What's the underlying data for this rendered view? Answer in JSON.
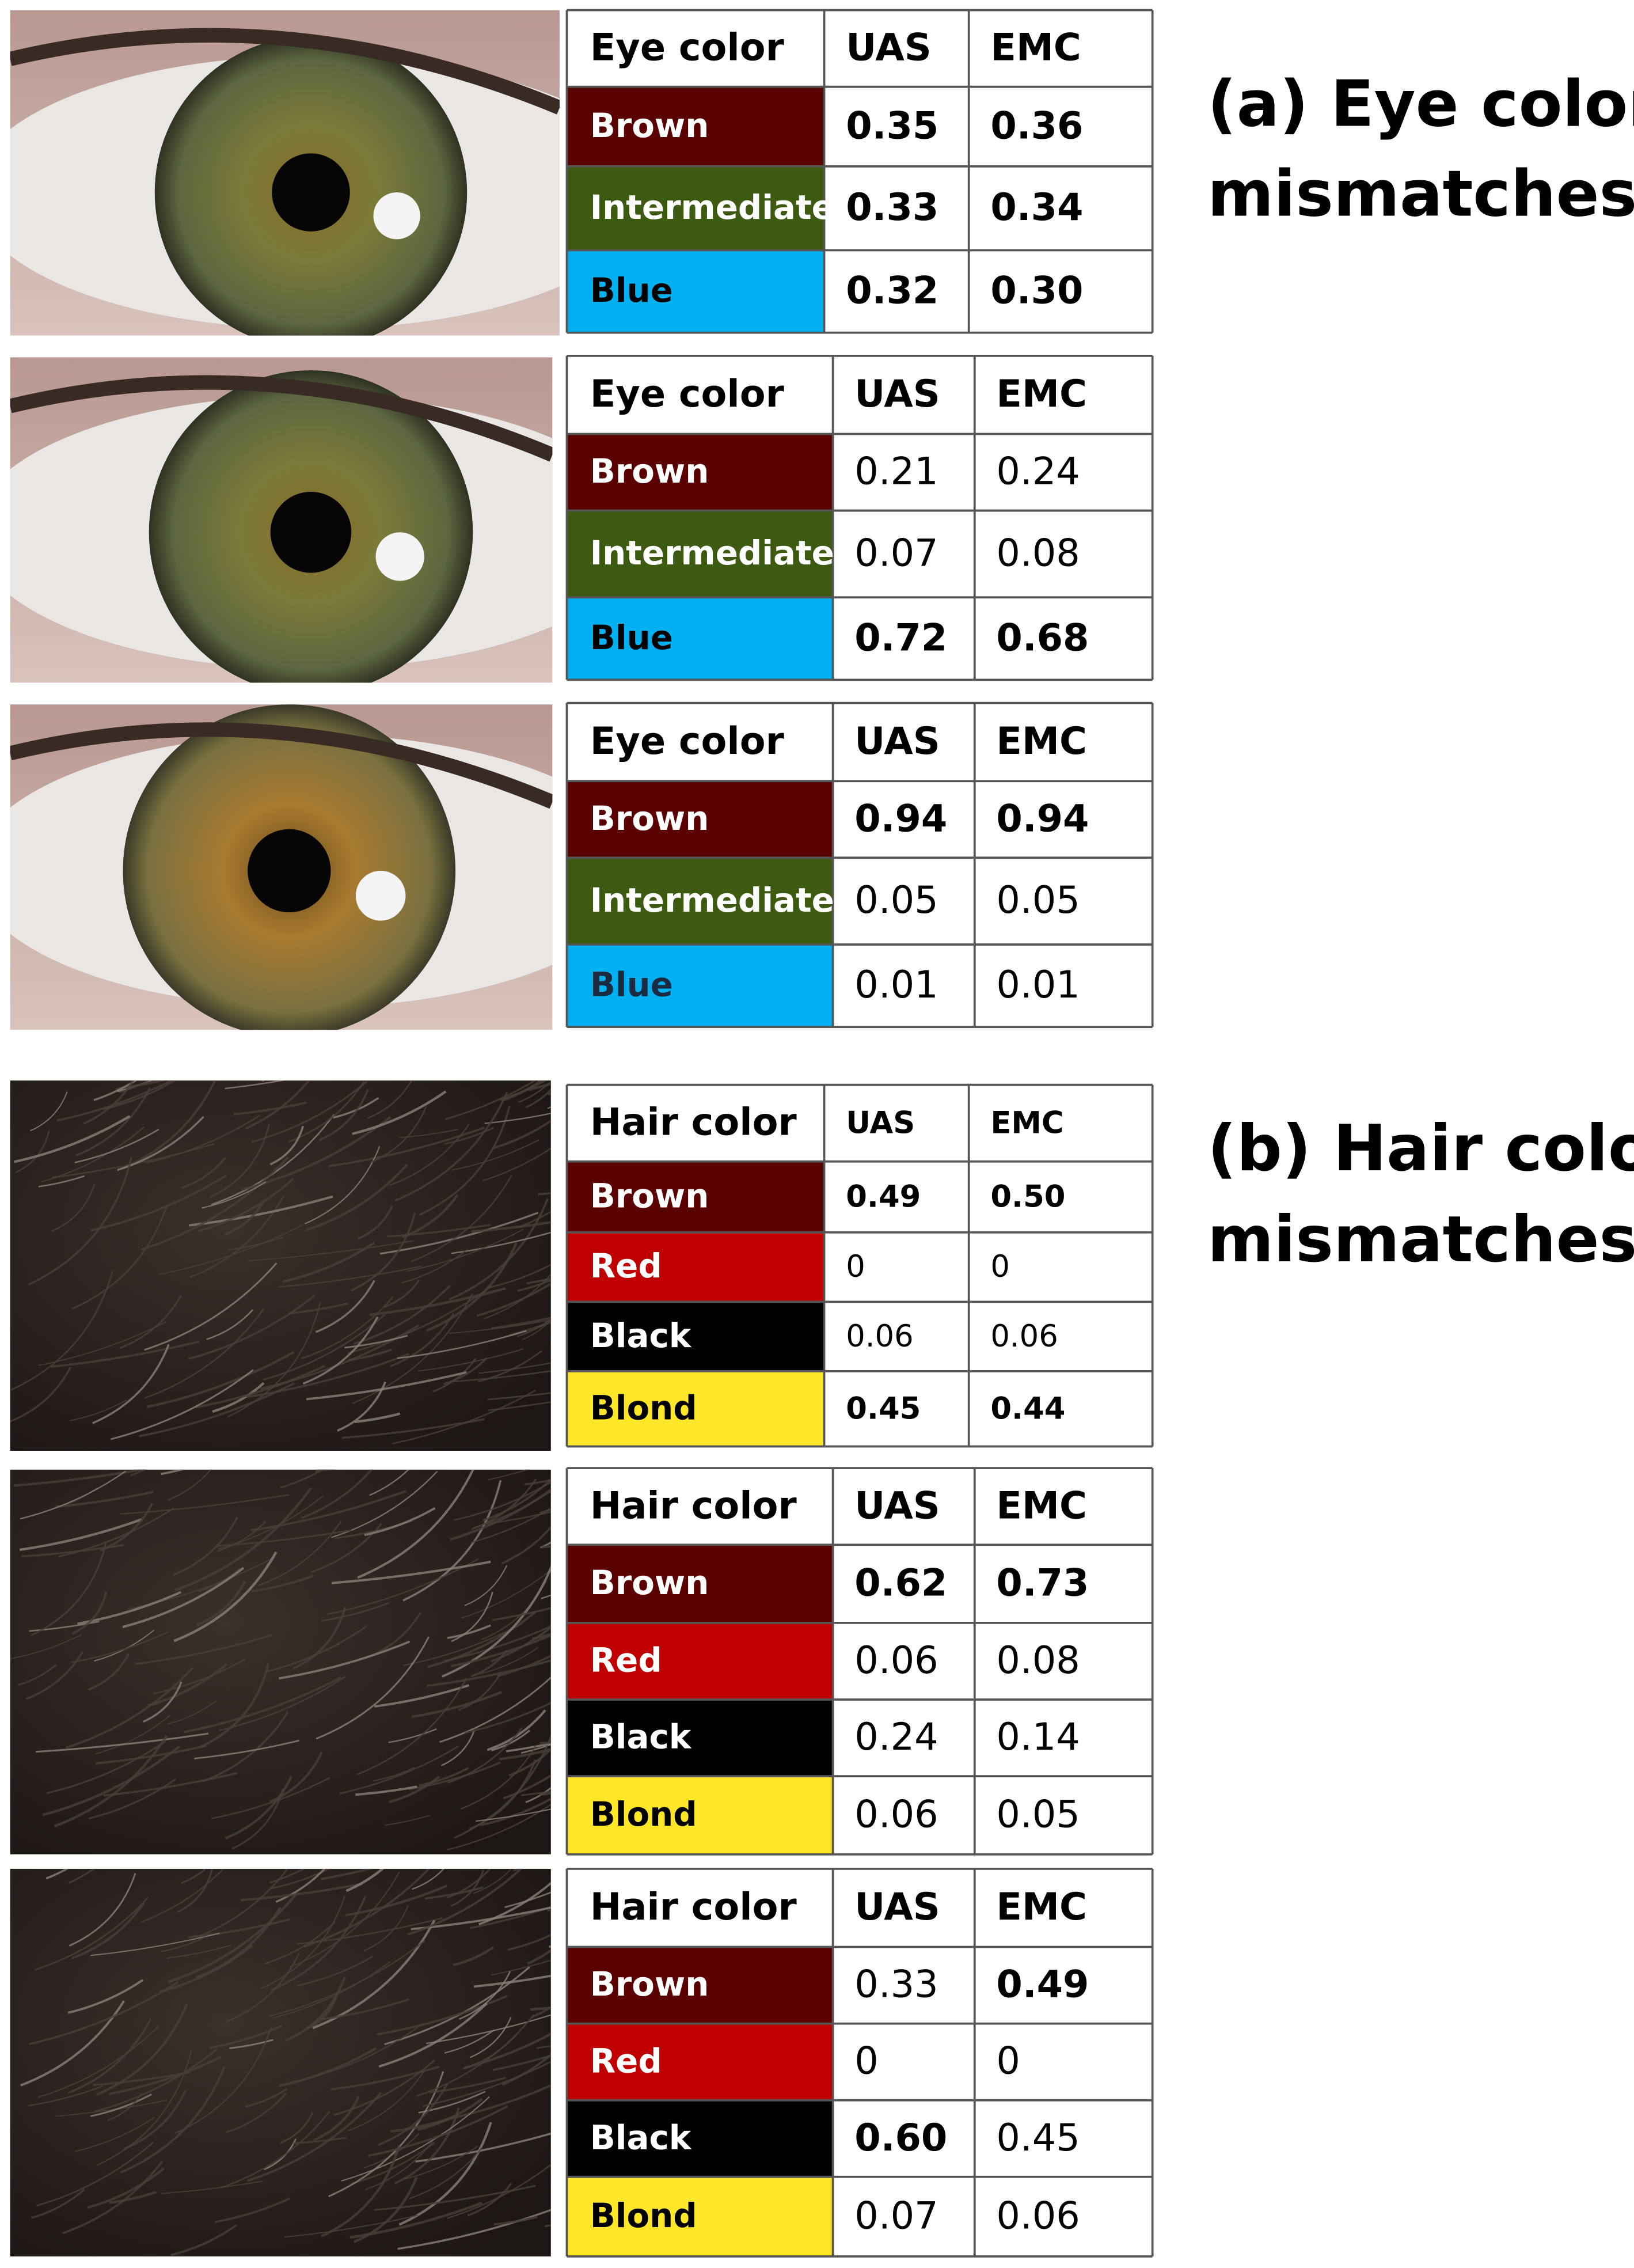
{
  "sections": [
    {
      "title_lines": [
        "(a)  Eye color",
        "mismatches"
      ],
      "tables": [
        {
          "header": [
            "Eye color",
            "UAS",
            "EMC"
          ],
          "rows": [
            {
              "label": "Brown",
              "color": "#5a0000",
              "text_color": "#ffffff",
              "values": [
                "0.35",
                "0.36"
              ],
              "bold": [
                true,
                true
              ]
            },
            {
              "label": "Intermediate",
              "color": "#3c5a10",
              "text_color": "#ffffff",
              "values": [
                "0.33",
                "0.34"
              ],
              "bold": [
                true,
                true
              ]
            },
            {
              "label": "Blue",
              "color": "#00b0f0",
              "text_color": "#000000",
              "values": [
                "0.32",
                "0.30"
              ],
              "bold": [
                true,
                true
              ]
            }
          ]
        },
        {
          "header": [
            "Eye color",
            "UAS",
            "EMC"
          ],
          "rows": [
            {
              "label": "Brown",
              "color": "#5a0000",
              "text_color": "#ffffff",
              "values": [
                "0.21",
                "0.24"
              ],
              "bold": [
                false,
                false
              ]
            },
            {
              "label": "Intermediate",
              "color": "#3c5a10",
              "text_color": "#ffffff",
              "values": [
                "0.07",
                "0.08"
              ],
              "bold": [
                false,
                false
              ]
            },
            {
              "label": "Blue",
              "color": "#00b0f0",
              "text_color": "#000000",
              "values": [
                "0.72",
                "0.68"
              ],
              "bold": [
                true,
                true
              ]
            }
          ]
        },
        {
          "header": [
            "Eye color",
            "UAS",
            "EMC"
          ],
          "rows": [
            {
              "label": "Brown",
              "color": "#5a0000",
              "text_color": "#ffffff",
              "values": [
                "0.94",
                "0.94"
              ],
              "bold": [
                true,
                true
              ]
            },
            {
              "label": "Intermediate",
              "color": "#3c5a10",
              "text_color": "#ffffff",
              "values": [
                "0.05",
                "0.05"
              ],
              "bold": [
                false,
                false
              ]
            },
            {
              "label": "Blue",
              "color": "#00b0f0",
              "text_color": "#1a2a40",
              "values": [
                "0.01",
                "0.01"
              ],
              "bold": [
                false,
                false
              ]
            }
          ]
        }
      ]
    },
    {
      "title_lines": [
        "(b) Hair color",
        "mismatches"
      ],
      "tables": [
        {
          "header": [
            "Hair color",
            "UAS",
            "EMC"
          ],
          "rows": [
            {
              "label": "Brown",
              "color": "#5a0000",
              "text_color": "#ffffff",
              "values": [
                "0.49",
                "0.50"
              ],
              "bold": [
                true,
                true
              ]
            },
            {
              "label": "Red",
              "color": "#c00000",
              "text_color": "#ffffff",
              "values": [
                "0",
                "0"
              ],
              "bold": [
                false,
                false
              ]
            },
            {
              "label": "Black",
              "color": "#000000",
              "text_color": "#ffffff",
              "values": [
                "0.06",
                "0.06"
              ],
              "bold": [
                false,
                false
              ]
            },
            {
              "label": "Blond",
              "color": "#ffe629",
              "text_color": "#000000",
              "values": [
                "0.45",
                "0.44"
              ],
              "bold": [
                true,
                true
              ]
            }
          ]
        },
        {
          "header": [
            "Hair color",
            "UAS",
            "EMC"
          ],
          "rows": [
            {
              "label": "Brown",
              "color": "#5a0000",
              "text_color": "#ffffff",
              "values": [
                "0.62",
                "0.73"
              ],
              "bold": [
                true,
                true
              ]
            },
            {
              "label": "Red",
              "color": "#c00000",
              "text_color": "#ffffff",
              "values": [
                "0.06",
                "0.08"
              ],
              "bold": [
                false,
                false
              ]
            },
            {
              "label": "Black",
              "color": "#000000",
              "text_color": "#ffffff",
              "values": [
                "0.24",
                "0.14"
              ],
              "bold": [
                false,
                false
              ]
            },
            {
              "label": "Blond",
              "color": "#ffe629",
              "text_color": "#000000",
              "values": [
                "0.06",
                "0.05"
              ],
              "bold": [
                false,
                false
              ]
            }
          ]
        },
        {
          "header": [
            "Hair color",
            "UAS",
            "EMC"
          ],
          "rows": [
            {
              "label": "Brown",
              "color": "#5a0000",
              "text_color": "#ffffff",
              "values": [
                "0.33",
                "0.49"
              ],
              "bold": [
                false,
                true
              ]
            },
            {
              "label": "Red",
              "color": "#c00000",
              "text_color": "#ffffff",
              "values": [
                "0",
                "0"
              ],
              "bold": [
                false,
                false
              ]
            },
            {
              "label": "Black",
              "color": "#000000",
              "text_color": "#ffffff",
              "values": [
                "0.60",
                "0.45"
              ],
              "bold": [
                true,
                false
              ]
            },
            {
              "label": "Blond",
              "color": "#ffe629",
              "text_color": "#000000",
              "values": [
                "0.07",
                "0.06"
              ],
              "bold": [
                false,
                false
              ]
            }
          ]
        }
      ]
    }
  ]
}
